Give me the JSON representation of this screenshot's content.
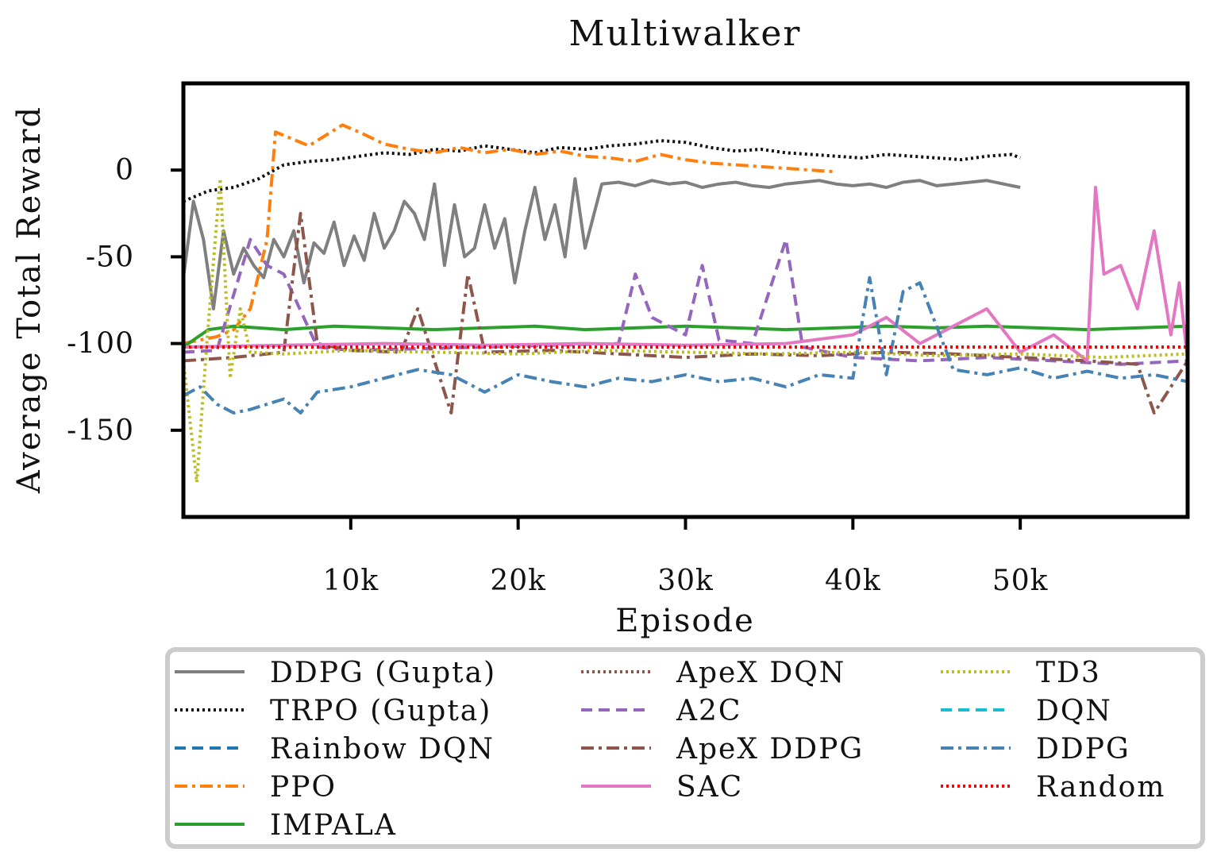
{
  "chart_data": {
    "type": "line",
    "title": "Multiwalker",
    "xlabel": "Episode",
    "ylabel": "Average Total Reward",
    "xlim": [
      0,
      60000
    ],
    "ylim": [
      -200,
      50
    ],
    "xticks": [
      10000,
      20000,
      30000,
      40000,
      50000
    ],
    "xtick_labels": [
      "10k",
      "20k",
      "30k",
      "40k",
      "50k"
    ],
    "yticks": [
      0,
      -50,
      -100,
      -150
    ],
    "ytick_labels": [
      "0",
      "-50",
      "-100",
      "-150"
    ],
    "grid": false,
    "legend_position": "bottom",
    "series": [
      {
        "name": "DDPG (Gupta)",
        "color": "#7f7f7f",
        "dash": "solid",
        "x": [
          0,
          600,
          1200,
          1800,
          2400,
          3000,
          3600,
          4200,
          4800,
          5400,
          6000,
          6600,
          7200,
          7800,
          8400,
          9000,
          9600,
          10200,
          10800,
          11400,
          12000,
          12600,
          13200,
          13800,
          14400,
          15000,
          15600,
          16200,
          16800,
          17400,
          18000,
          18600,
          19200,
          19800,
          20400,
          21000,
          21600,
          22200,
          22800,
          23400,
          24000,
          25000,
          26000,
          27000,
          28000,
          29000,
          30000,
          31000,
          32000,
          33000,
          34000,
          35000,
          36000,
          37000,
          38000,
          39000,
          40000,
          41000,
          42000,
          43000,
          44000,
          45000,
          46000,
          47000,
          48000,
          49000,
          50000
        ],
        "y": [
          -62,
          -18,
          -40,
          -80,
          -35,
          -60,
          -45,
          -55,
          -62,
          -40,
          -50,
          -35,
          -65,
          -42,
          -48,
          -30,
          -55,
          -38,
          -52,
          -25,
          -45,
          -35,
          -18,
          -25,
          -40,
          -8,
          -55,
          -20,
          -50,
          -45,
          -20,
          -45,
          -28,
          -65,
          -35,
          -10,
          -40,
          -20,
          -50,
          -5,
          -45,
          -8,
          -7,
          -9,
          -6,
          -8,
          -7,
          -10,
          -8,
          -7,
          -9,
          -10,
          -8,
          -7,
          -6,
          -8,
          -9,
          -8,
          -10,
          -7,
          -6,
          -9,
          -8,
          -7,
          -6,
          -8,
          -10
        ]
      },
      {
        "name": "TRPO (Gupta)",
        "color": "#111111",
        "dash": "dotted",
        "x": [
          0,
          1500,
          3000,
          4500,
          6000,
          7500,
          9000,
          10500,
          12000,
          13500,
          15000,
          16500,
          18000,
          19500,
          21000,
          22500,
          24000,
          25500,
          27000,
          28500,
          30000,
          31500,
          33000,
          34500,
          36000,
          37500,
          39000,
          40500,
          42000,
          43500,
          45000,
          46500,
          48000,
          49500,
          50000
        ],
        "y": [
          -18,
          -12,
          -10,
          -5,
          3,
          5,
          6,
          8,
          10,
          9,
          12,
          11,
          14,
          12,
          10,
          13,
          12,
          14,
          15,
          17,
          16,
          13,
          11,
          12,
          10,
          9,
          8,
          7,
          9,
          8,
          7,
          6,
          8,
          9,
          7
        ]
      },
      {
        "name": "Rainbow DQN",
        "color": "#1f77b4",
        "dash": "dashed",
        "x": [],
        "y": []
      },
      {
        "name": "PPO",
        "color": "#ff7f0e",
        "dash": "dashdot",
        "x": [
          0,
          1000,
          2000,
          3000,
          4000,
          5000,
          5500,
          6500,
          7500,
          8500,
          9500,
          10500,
          12000,
          13500,
          15000,
          16500,
          18000,
          19500,
          21000,
          22500,
          24000,
          25500,
          27000,
          28500,
          30000,
          31500,
          33000,
          34500,
          36000,
          37500,
          39000
        ],
        "y": [
          -100,
          -98,
          -96,
          -92,
          -80,
          -40,
          22,
          18,
          14,
          20,
          26,
          22,
          15,
          12,
          10,
          13,
          10,
          12,
          9,
          11,
          8,
          7,
          5,
          9,
          6,
          4,
          3,
          2,
          1,
          0,
          -1
        ]
      },
      {
        "name": "IMPALA",
        "color": "#2ca02c",
        "dash": "solid",
        "x": [
          0,
          1500,
          3000,
          6000,
          9000,
          12000,
          15000,
          18000,
          21000,
          24000,
          27000,
          30000,
          33000,
          36000,
          39000,
          42000,
          45000,
          48000,
          51000,
          54000,
          57000,
          60000
        ],
        "y": [
          -102,
          -92,
          -90,
          -92,
          -90,
          -91,
          -92,
          -91,
          -90,
          -92,
          -91,
          -90,
          -91,
          -92,
          -91,
          -90,
          -91,
          -90,
          -91,
          -92,
          -91,
          -90
        ]
      },
      {
        "name": "ApeX DQN",
        "color": "#8c564b",
        "dash": "dotted",
        "x": [],
        "y": []
      },
      {
        "name": "A2C",
        "color": "#9467bd",
        "dash": "dashed",
        "x": [
          0,
          2000,
          4000,
          5000,
          6000,
          8000,
          10000,
          14000,
          18000,
          22000,
          26000,
          27000,
          28000,
          29000,
          30000,
          31000,
          32000,
          34000,
          36000,
          37000,
          40000,
          44000,
          48000,
          52000,
          56000,
          60000
        ],
        "y": [
          -105,
          -104,
          -40,
          -55,
          -60,
          -102,
          -104,
          -103,
          -102,
          -101,
          -100,
          -60,
          -85,
          -90,
          -95,
          -55,
          -98,
          -100,
          -40,
          -102,
          -108,
          -110,
          -108,
          -110,
          -112,
          -110
        ]
      },
      {
        "name": "ApeX DDPG",
        "color": "#8c564b",
        "dash": "dashdot",
        "x": [
          0,
          3000,
          6000,
          7000,
          8000,
          10000,
          13000,
          14000,
          16000,
          17000,
          18000,
          22000,
          26000,
          30000,
          34000,
          38000,
          42000,
          46000,
          50000,
          54000,
          57000,
          58000,
          60000
        ],
        "y": [
          -110,
          -108,
          -105,
          -25,
          -100,
          -104,
          -105,
          -80,
          -140,
          -60,
          -105,
          -104,
          -106,
          -108,
          -106,
          -107,
          -105,
          -106,
          -108,
          -110,
          -112,
          -140,
          -110
        ]
      },
      {
        "name": "SAC",
        "color": "#e377c2",
        "dash": "solid",
        "x": [
          0,
          6000,
          12000,
          18000,
          24000,
          30000,
          36000,
          40000,
          42000,
          44000,
          46000,
          48000,
          50000,
          52000,
          54000,
          54500,
          55000,
          56000,
          57000,
          58000,
          59000,
          59500,
          60000
        ],
        "y": [
          -102,
          -101,
          -100,
          -101,
          -100,
          -101,
          -100,
          -95,
          -85,
          -100,
          -90,
          -80,
          -105,
          -95,
          -110,
          -10,
          -60,
          -55,
          -80,
          -35,
          -95,
          -65,
          -110
        ]
      },
      {
        "name": "TD3",
        "color": "#bcbd22",
        "dash": "dotted",
        "x": [
          0,
          800,
          1400,
          2200,
          2800,
          3400,
          4000,
          6000,
          10000,
          15000,
          20000,
          25000,
          30000,
          35000,
          40000,
          45000,
          50000,
          55000,
          60000
        ],
        "y": [
          -110,
          -180,
          -100,
          -5,
          -120,
          -80,
          -105,
          -106,
          -104,
          -105,
          -106,
          -104,
          -105,
          -106,
          -105,
          -107,
          -106,
          -108,
          -106
        ]
      },
      {
        "name": "DQN",
        "color": "#17becf",
        "dash": "dashed",
        "x": [],
        "y": []
      },
      {
        "name": "DDPG",
        "color": "#4682b4",
        "dash": "dashdot",
        "x": [
          0,
          1000,
          2000,
          3000,
          4000,
          5000,
          6000,
          7000,
          8000,
          10000,
          12000,
          14000,
          16000,
          18000,
          20000,
          22000,
          24000,
          26000,
          28000,
          30000,
          32000,
          34000,
          36000,
          38000,
          40000,
          41000,
          42000,
          43000,
          44000,
          46000,
          48000,
          50000,
          52000,
          54000,
          56000,
          58000,
          60000
        ],
        "y": [
          -130,
          -125,
          -135,
          -140,
          -138,
          -135,
          -132,
          -140,
          -128,
          -125,
          -120,
          -115,
          -118,
          -128,
          -118,
          -122,
          -125,
          -120,
          -122,
          -118,
          -122,
          -120,
          -125,
          -118,
          -120,
          -62,
          -118,
          -70,
          -65,
          -115,
          -118,
          -114,
          -120,
          -116,
          -120,
          -118,
          -122
        ]
      },
      {
        "name": "Random",
        "color": "#ff0000",
        "dash": "dotted",
        "x": [
          0,
          60000
        ],
        "y": [
          -102,
          -102
        ]
      }
    ]
  }
}
